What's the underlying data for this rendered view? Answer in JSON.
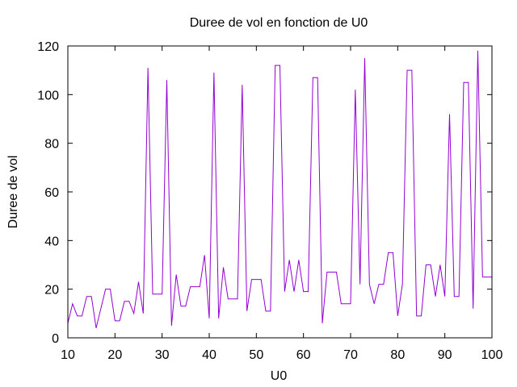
{
  "chart_data": {
    "type": "line",
    "title": "Duree de vol en fonction de U0",
    "xlabel": "U0",
    "ylabel": "Duree de vol",
    "xlim": [
      10,
      100
    ],
    "ylim": [
      0,
      120
    ],
    "xticks": [
      "10",
      "20",
      "30",
      "40",
      "50",
      "60",
      "70",
      "80",
      "90",
      "100"
    ],
    "yticks": [
      "0",
      "20",
      "40",
      "60",
      "80",
      "100",
      "120"
    ],
    "grid": false,
    "legend": "none",
    "series": [
      {
        "color": "#9400d3",
        "x": [
          10,
          11,
          12,
          13,
          14,
          15,
          16,
          17,
          18,
          19,
          20,
          21,
          22,
          23,
          24,
          25,
          26,
          27,
          28,
          29,
          30,
          31,
          32,
          33,
          34,
          35,
          36,
          37,
          38,
          39,
          40,
          41,
          42,
          43,
          44,
          45,
          46,
          47,
          48,
          49,
          50,
          51,
          52,
          53,
          54,
          55,
          56,
          57,
          58,
          59,
          60,
          61,
          62,
          63,
          64,
          65,
          66,
          67,
          68,
          69,
          70,
          71,
          72,
          73,
          74,
          75,
          76,
          77,
          78,
          79,
          80,
          81,
          82,
          83,
          84,
          85,
          86,
          87,
          88,
          89,
          90,
          91,
          92,
          93,
          94,
          95,
          96,
          97,
          98,
          99,
          100
        ],
        "y": [
          6,
          14,
          9,
          9,
          17,
          17,
          4,
          12,
          20,
          20,
          7,
          7,
          15,
          15,
          10,
          23,
          10,
          111,
          18,
          18,
          18,
          106,
          5,
          26,
          13,
          13,
          21,
          21,
          21,
          34,
          8,
          109,
          8,
          29,
          16,
          16,
          16,
          104,
          11,
          24,
          24,
          24,
          11,
          11,
          112,
          112,
          19,
          32,
          19,
          32,
          19,
          19,
          107,
          107,
          6,
          27,
          27,
          27,
          14,
          14,
          14,
          102,
          22,
          115,
          22,
          14,
          22,
          22,
          35,
          35,
          9,
          22,
          110,
          110,
          9,
          9,
          30,
          30,
          17,
          30,
          17,
          92,
          17,
          17,
          105,
          105,
          12,
          118,
          25,
          25,
          25
        ]
      }
    ]
  }
}
